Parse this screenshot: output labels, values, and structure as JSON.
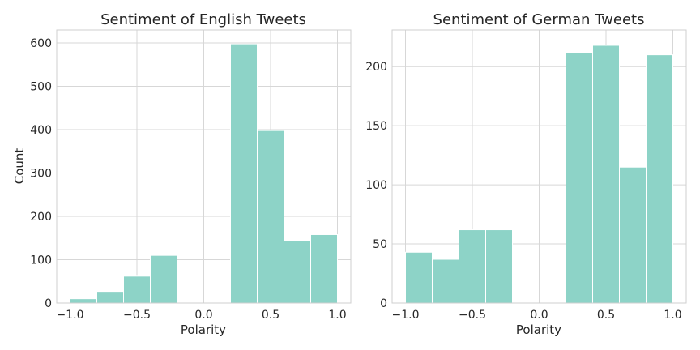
{
  "chart_data": [
    {
      "type": "bar",
      "title": "Sentiment of English Tweets",
      "xlabel": "Polarity",
      "ylabel": "Count",
      "xlim": [
        -1.1,
        1.1
      ],
      "ylim": [
        0,
        630
      ],
      "xticks": [
        -1.0,
        -0.5,
        0.0,
        0.5,
        1.0
      ],
      "xtick_labels": [
        "−1.0",
        "−0.5",
        "0.0",
        "0.5",
        "1.0"
      ],
      "yticks": [
        0,
        100,
        200,
        300,
        400,
        500,
        600
      ],
      "ytick_labels": [
        "0",
        "100",
        "200",
        "300",
        "400",
        "500",
        "600"
      ],
      "bin_edges": [
        -1.0,
        -0.8,
        -0.6,
        -0.4,
        -0.2,
        0.0,
        0.2,
        0.4,
        0.6,
        0.8,
        1.0
      ],
      "values": [
        10,
        25,
        62,
        110,
        0,
        0,
        598,
        398,
        144,
        158
      ],
      "grid": true,
      "color": "#8dd3c7"
    },
    {
      "type": "bar",
      "title": "Sentiment of German Tweets",
      "xlabel": "Polarity",
      "ylabel": "",
      "xlim": [
        -1.1,
        1.1
      ],
      "ylim": [
        0,
        231
      ],
      "xticks": [
        -1.0,
        -0.5,
        0.0,
        0.5,
        1.0
      ],
      "xtick_labels": [
        "−1.0",
        "−0.5",
        "0.0",
        "0.5",
        "1.0"
      ],
      "yticks": [
        0,
        50,
        100,
        150,
        200
      ],
      "ytick_labels": [
        "0",
        "50",
        "100",
        "150",
        "200"
      ],
      "bin_edges": [
        -1.0,
        -0.8,
        -0.6,
        -0.4,
        -0.2,
        0.0,
        0.2,
        0.4,
        0.6,
        0.8,
        1.0
      ],
      "values": [
        43,
        37,
        62,
        62,
        0,
        0,
        212,
        218,
        115,
        210
      ],
      "grid": true,
      "color": "#8dd3c7"
    }
  ]
}
